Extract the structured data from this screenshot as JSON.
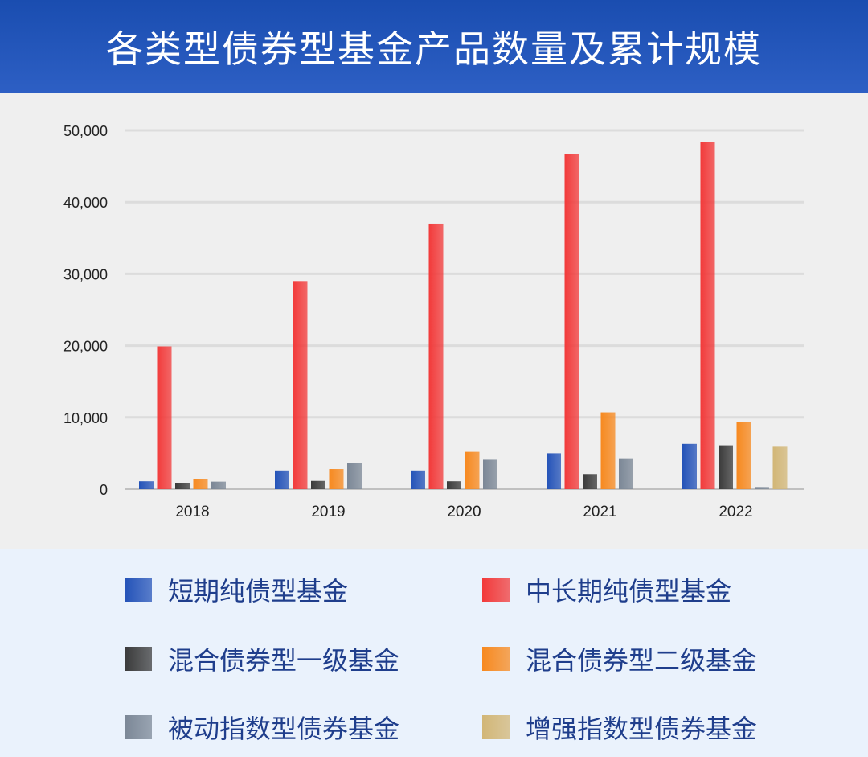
{
  "title": "各类型债券型基金产品数量及累计规模",
  "colors": {
    "header_bg": "#1a4db0",
    "chart_bg": "#efefef",
    "legend_bg": "#eaf2fc",
    "gridline": "#dcdcdc",
    "axis_text": "#222222",
    "legend_text": "#1f3e8c"
  },
  "chart_data": {
    "type": "bar",
    "title": "各类型债券型基金产品数量及累计规模",
    "xlabel": "",
    "ylabel": "",
    "categories": [
      "2018",
      "2019",
      "2020",
      "2021",
      "2022"
    ],
    "ylim": [
      0,
      50000
    ],
    "yticks": [
      0,
      10000,
      20000,
      30000,
      40000,
      50000
    ],
    "ytick_labels": [
      "0",
      "10,000",
      "20,000",
      "30,000",
      "40,000",
      "50,000"
    ],
    "grid": true,
    "legend_position": "bottom",
    "series": [
      {
        "name": "短期纯债型基金",
        "color": "#2352b8",
        "values": [
          1100,
          2600,
          2600,
          5000,
          6300
        ]
      },
      {
        "name": "中长期纯债型基金",
        "color": "#f23a3a",
        "values": [
          19900,
          29000,
          37000,
          46700,
          48400
        ]
      },
      {
        "name": "混合债券型一级基金",
        "color": "#3a3a3a",
        "values": [
          850,
          1150,
          1100,
          2100,
          6100
        ]
      },
      {
        "name": "混合债券型二级基金",
        "color": "#f7891f",
        "values": [
          1400,
          2800,
          5200,
          10700,
          9400
        ]
      },
      {
        "name": "被动指数型债券基金",
        "color": "#7b8796",
        "values": [
          1050,
          3600,
          4100,
          4300,
          300
        ]
      },
      {
        "name": "增强指数型债券基金",
        "color": "#d2b676",
        "values": [
          0,
          0,
          0,
          0,
          5900
        ]
      }
    ]
  }
}
